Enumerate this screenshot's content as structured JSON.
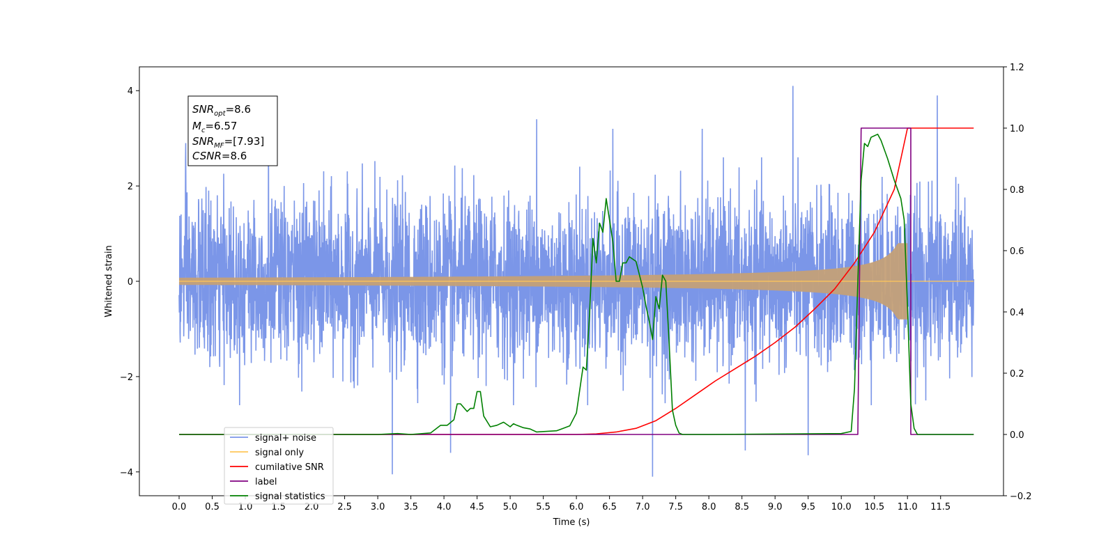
{
  "chart_data": {
    "type": "line",
    "xlabel": "Time (s)",
    "ylabel_left": "Whitened strain",
    "ylabel_right": "",
    "xlim": [
      -0.6,
      12.45
    ],
    "ylim_left": [
      -4.5,
      4.5
    ],
    "ylim_right": [
      -0.2,
      1.2
    ],
    "x_ticks": [
      0.0,
      0.5,
      1.0,
      1.5,
      2.0,
      2.5,
      3.0,
      3.5,
      4.0,
      4.5,
      5.0,
      5.5,
      6.0,
      6.5,
      7.0,
      7.5,
      8.0,
      8.5,
      9.0,
      9.5,
      10.0,
      10.5,
      11.0,
      11.5
    ],
    "x_tick_labels": [
      "0.0",
      "0.5",
      "1.0",
      "1.5",
      "2.0",
      "2.5",
      "3.0",
      "3.5",
      "4.0",
      "4.5",
      "5.0",
      "5.5",
      "6.0",
      "6.5",
      "7.0",
      "7.5",
      "8.0",
      "8.5",
      "9.0",
      "9.5",
      "10.0",
      "10.5",
      "11.0",
      "11.5"
    ],
    "y_ticks_left": [
      -4,
      -2,
      0,
      2,
      4
    ],
    "y_tick_labels_left": [
      "−4",
      "−2",
      "0",
      "2",
      "4"
    ],
    "y_ticks_right": [
      -0.2,
      0.0,
      0.2,
      0.4,
      0.6,
      0.8,
      1.0,
      1.2
    ],
    "y_tick_labels_right": [
      "−0.2",
      "0.0",
      "0.2",
      "0.4",
      "0.6",
      "0.8",
      "1.0",
      "1.2"
    ],
    "grid": false,
    "legend_position": "lower-left",
    "annotation": {
      "snr_opt": "8.6",
      "mc": "6.57",
      "snr_mf": "[7.93]",
      "csnr": "8.6"
    },
    "legend": [
      {
        "label": "signal+ noise",
        "color": "#7b96e8"
      },
      {
        "label": "signal only",
        "color": "#ffc75a"
      },
      {
        "label": "cumilative SNR",
        "color": "#ff0000"
      },
      {
        "label": "label",
        "color": "#800080"
      },
      {
        "label": "signal statistics",
        "color": "#008000"
      }
    ],
    "series": [
      {
        "name": "signal+ noise",
        "axis": "left",
        "color": "#7b96e8",
        "kind": "noise",
        "x_range": [
          0.0,
          12.0
        ],
        "typical_envelope": [
          -2.2,
          2.4
        ],
        "notable_peaks": [
          [
            0.1,
            2.9
          ],
          [
            1.35,
            3.7
          ],
          [
            5.4,
            3.4
          ],
          [
            6.55,
            3.2
          ],
          [
            7.9,
            3.2
          ],
          [
            9.27,
            4.1
          ],
          [
            11.45,
            3.9
          ],
          [
            3.22,
            -4.05
          ],
          [
            7.15,
            -4.1
          ],
          [
            9.5,
            -3.65
          ],
          [
            4.1,
            -3.6
          ],
          [
            8.55,
            -3.55
          ]
        ]
      },
      {
        "name": "signal only",
        "axis": "left",
        "color": "#ffc75a",
        "kind": "chirp",
        "x_range": [
          0.0,
          11.0
        ],
        "max_amplitude": 0.8
      },
      {
        "name": "cumilative SNR",
        "axis": "right",
        "color": "#ff0000",
        "x": [
          0.0,
          6.0,
          6.3,
          6.6,
          6.9,
          7.2,
          7.5,
          7.8,
          8.1,
          8.4,
          8.7,
          9.0,
          9.3,
          9.6,
          9.9,
          10.2,
          10.5,
          10.8,
          11.0,
          11.05,
          12.0
        ],
        "values": [
          0.0,
          0.0,
          0.002,
          0.008,
          0.02,
          0.045,
          0.085,
          0.13,
          0.175,
          0.215,
          0.255,
          0.3,
          0.35,
          0.41,
          0.475,
          0.56,
          0.66,
          0.8,
          1.0,
          1.0,
          1.0
        ]
      },
      {
        "name": "label",
        "axis": "right",
        "color": "#800080",
        "x": [
          0.0,
          10.25,
          10.3,
          11.0,
          11.05,
          11.05,
          12.0
        ],
        "values": [
          0.0,
          0.0,
          1.0,
          1.0,
          1.0,
          0.0,
          0.0
        ]
      },
      {
        "name": "signal statistics",
        "axis": "right",
        "color": "#008000",
        "x": [
          0.0,
          3.0,
          3.3,
          3.5,
          3.8,
          3.95,
          4.05,
          4.15,
          4.2,
          4.25,
          4.35,
          4.4,
          4.45,
          4.5,
          4.55,
          4.6,
          4.7,
          4.8,
          4.9,
          5.0,
          5.05,
          5.1,
          5.2,
          5.3,
          5.4,
          5.55,
          5.7,
          5.8,
          5.9,
          6.0,
          6.1,
          6.15,
          6.2,
          6.25,
          6.3,
          6.35,
          6.4,
          6.45,
          6.5,
          6.55,
          6.6,
          6.65,
          6.7,
          6.75,
          6.8,
          6.9,
          7.0,
          7.05,
          7.1,
          7.15,
          7.2,
          7.25,
          7.3,
          7.35,
          7.4,
          7.45,
          7.5,
          7.55,
          7.6,
          7.65,
          7.7,
          7.75,
          7.8,
          7.9,
          8.0,
          10.0,
          10.15,
          10.2,
          10.25,
          10.3,
          10.35,
          10.4,
          10.45,
          10.5,
          10.55,
          10.6,
          10.7,
          10.8,
          10.9,
          10.95,
          11.0,
          11.05,
          11.1,
          11.15,
          12.0
        ],
        "values": [
          0.0,
          0.0,
          0.003,
          0.0,
          0.005,
          0.03,
          0.03,
          0.048,
          0.1,
          0.1,
          0.075,
          0.085,
          0.085,
          0.14,
          0.14,
          0.06,
          0.025,
          0.03,
          0.04,
          0.025,
          0.035,
          0.03,
          0.022,
          0.018,
          0.008,
          0.01,
          0.012,
          0.02,
          0.028,
          0.07,
          0.22,
          0.21,
          0.4,
          0.64,
          0.56,
          0.69,
          0.66,
          0.77,
          0.7,
          0.63,
          0.5,
          0.5,
          0.56,
          0.56,
          0.58,
          0.565,
          0.48,
          0.42,
          0.37,
          0.31,
          0.45,
          0.41,
          0.52,
          0.5,
          0.3,
          0.08,
          0.03,
          0.005,
          0.0,
          0.0,
          0.0,
          0.0,
          0.0,
          0.0,
          0.0,
          0.003,
          0.01,
          0.15,
          0.5,
          0.83,
          0.95,
          0.94,
          0.97,
          0.975,
          0.98,
          0.96,
          0.9,
          0.83,
          0.77,
          0.7,
          0.42,
          0.1,
          0.02,
          0.0,
          0.0
        ]
      }
    ]
  }
}
